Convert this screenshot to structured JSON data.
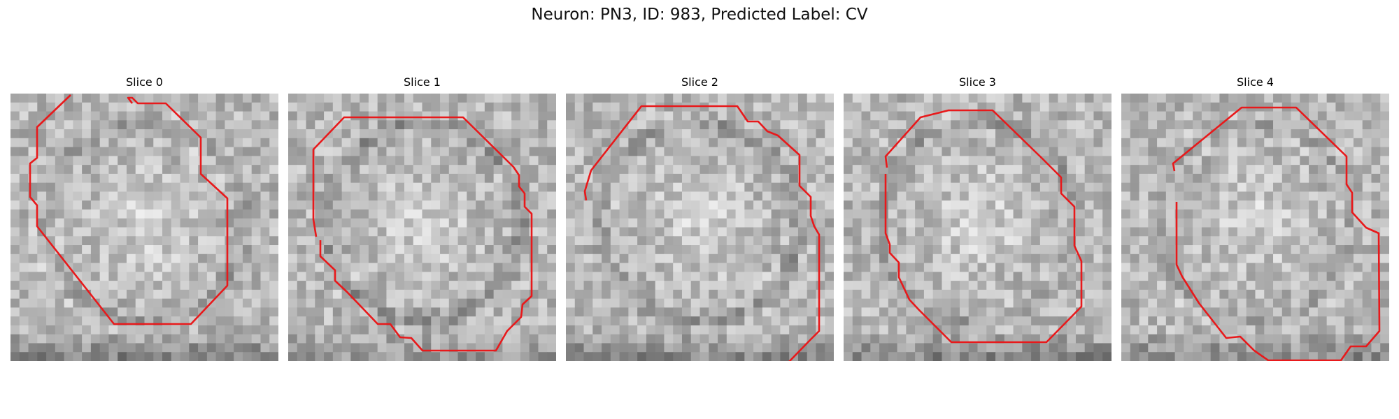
{
  "figure": {
    "title": "Neuron: PN3, ID: 983, Predicted Label: CV",
    "contour_color": "#e8191b"
  },
  "slices": [
    {
      "label": "Slice 0",
      "seed": 11,
      "dark_ring": 0.55,
      "bottom_dark": 0.85
    },
    {
      "label": "Slice 1",
      "seed": 23,
      "dark_ring": 0.65,
      "bottom_dark": 0.55
    },
    {
      "label": "Slice 2",
      "seed": 37,
      "dark_ring": 0.6,
      "bottom_dark": 0.8
    },
    {
      "label": "Slice 3",
      "seed": 41,
      "dark_ring": 0.55,
      "bottom_dark": 0.85
    },
    {
      "label": "Slice 4",
      "seed": 53,
      "dark_ring": 0.5,
      "bottom_dark": 0.75
    }
  ]
}
